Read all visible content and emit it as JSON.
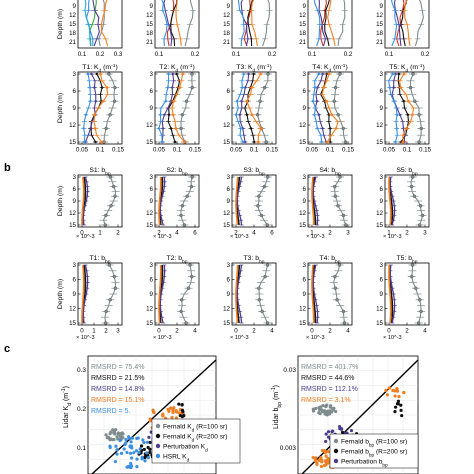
{
  "panel_labels": [
    "b",
    "c"
  ],
  "colors": {
    "gray": "#7f8c8d",
    "black": "#111111",
    "purple": "#4b3c8f",
    "orange": "#f07f22",
    "blue": "#3a8fe0",
    "green": "#3aa63a",
    "red": "#d93025",
    "cyan": "#29a9d6"
  },
  "chart_data": [
    {
      "id": "row-a-bottom",
      "type": "line",
      "titles": [
        "T1: K_d (m^-1)",
        "T2: K_d (m^-1)",
        "T3: K_d (m^-1)",
        "T4: K_d (m^-1)",
        "T5: K_d (m^-1)"
      ],
      "ylabel": "Depth (m)",
      "y_ticks": [
        "3",
        "6",
        "9",
        "12",
        "15"
      ],
      "x_ticks": [
        [
          "0.05",
          "0.1",
          "0.15"
        ],
        [
          "0.05",
          "0.1",
          "0.15"
        ],
        [
          "0.05",
          "0.1",
          "0.15"
        ],
        [
          "0.05",
          "0.1",
          "0.15"
        ],
        [
          "0.05",
          "0.1",
          "0.15"
        ]
      ],
      "top_x_ticks": [
        [
          "0.1",
          "0.2",
          "0.3"
        ],
        [
          "0.1",
          "0.2"
        ],
        [
          "0.1",
          "0.2"
        ],
        [
          "0.1",
          "0.2"
        ],
        [
          "0.1",
          "0.2"
        ]
      ],
      "top_y_ticks": [
        "9",
        "12",
        "15",
        "18",
        "21"
      ]
    },
    {
      "id": "row-b",
      "type": "line",
      "titles_top": [
        "S1: b_bp",
        "S2: b_bp",
        "S3: b_bp",
        "S4: b_bp",
        "S5: b_bp"
      ],
      "titles_bottom": [
        "T1: b_bp",
        "T2: b_bp",
        "T3: b_bp",
        "T4: b_bp",
        "T5: b_bp"
      ],
      "ylabel": "Depth (m)",
      "y_ticks": [
        "3",
        "6",
        "9",
        "12",
        "15"
      ],
      "x_ticks_top": [
        [
          "0",
          "1",
          "2"
        ],
        [
          "2",
          "4",
          "6"
        ],
        [
          "2",
          "4",
          "6"
        ],
        [
          "1",
          "2",
          "3"
        ],
        [
          "1",
          "2",
          "3"
        ]
      ],
      "x_ticks_bottom": [
        [
          "0",
          "1",
          "2",
          "3"
        ],
        [
          "0",
          "2",
          "4"
        ],
        [
          "0",
          "2",
          "4"
        ],
        [
          "0",
          "2",
          "4"
        ],
        [
          "0",
          "2",
          "4"
        ]
      ],
      "x_exponent": "× 10^-3"
    },
    {
      "id": "panel-c-left",
      "type": "scatter",
      "ylabel": "Lidar K_d (m^-1)",
      "y_ticks": [
        "0.3",
        "0.2",
        "0.1"
      ],
      "rmsrd": [
        {
          "text": "RMSRD = 75.4%",
          "color": "#7f8c8d"
        },
        {
          "text": "RMSRD = 21.5%",
          "color": "#111111"
        },
        {
          "text": "RMSRD = 14.8%",
          "color": "#4b3c8f"
        },
        {
          "text": "RMSRD = 15.1%",
          "color": "#f07f22"
        },
        {
          "text": "RMSRD = 5.",
          "color": "#3a8fe0"
        }
      ],
      "legend": [
        {
          "text": "Fernald K_d (R=100 sr)",
          "color": "#7f8c8d"
        },
        {
          "text": "Fernald K_d (R=200 sr)",
          "color": "#111111"
        },
        {
          "text": "Perturbation K_d",
          "color": "#4b3c8f"
        },
        {
          "text": "HSRL K_d",
          "color": "#3a8fe0"
        }
      ]
    },
    {
      "id": "panel-c-right",
      "type": "scatter",
      "ylabel": "Lidar b_bp (m^-1)",
      "y_ticks": [
        "0.03",
        "0.003"
      ],
      "rmsrd": [
        {
          "text": "RMSRD = 401.7%",
          "color": "#7f8c8d"
        },
        {
          "text": "RMSRD = 44.6%",
          "color": "#111111"
        },
        {
          "text": "RMSRD = 112.1%",
          "color": "#4b3c8f"
        },
        {
          "text": "RMSRD = 3.1%",
          "color": "#f07f22"
        }
      ],
      "legend": [
        {
          "text": "Fernald b_bp (R=100 sr)",
          "color": "#7f8c8d"
        },
        {
          "text": "Fernald b_bp (R=200 sr)",
          "color": "#111111"
        },
        {
          "text": "Perturbation b_bp",
          "color": "#4b3c8f"
        }
      ]
    }
  ]
}
